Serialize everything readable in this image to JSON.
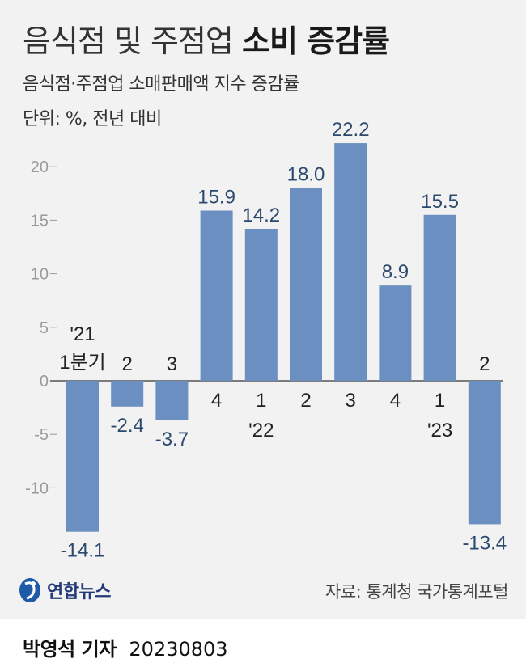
{
  "header": {
    "title_light": "음식점 및 주점업",
    "title_bold": "소비 증감률",
    "subtitle": "음식점·주점업 소매판매액 지수 증감률",
    "unit": "단위: %, 전년 대비"
  },
  "chart_data": {
    "type": "bar",
    "title": "음식점 및 주점업 소비 증감률",
    "subtitle": "음식점·주점업 소매판매액 지수 증감률",
    "ylabel": "단위: %, 전년 대비",
    "ylim": [
      -14.1,
      22.2
    ],
    "yticks": [
      "20",
      "15",
      "10",
      "5",
      "0",
      "-5",
      "-10"
    ],
    "ytick_values": [
      20,
      15,
      10,
      5,
      0,
      -5,
      -10
    ],
    "categories": [
      "'21 1분기",
      "2",
      "3",
      "4",
      "'22 1",
      "2",
      "3",
      "4",
      "'23 1",
      "2"
    ],
    "category_labels": [
      [
        "'21",
        "1분기"
      ],
      [
        "2"
      ],
      [
        "3"
      ],
      [
        "4"
      ],
      [
        "1",
        "'22"
      ],
      [
        "2"
      ],
      [
        "3"
      ],
      [
        "4"
      ],
      [
        "1",
        "'23"
      ],
      [
        "2"
      ]
    ],
    "values": [
      -14.1,
      -2.4,
      -3.7,
      15.9,
      14.2,
      18.0,
      22.2,
      8.9,
      15.5,
      -13.4
    ],
    "value_labels": [
      "-14.1",
      "-2.4",
      "-3.7",
      "15.9",
      "14.2",
      "18.0",
      "22.2",
      "8.9",
      "15.5",
      "-13.4"
    ],
    "bar_color": "#6a8fc0",
    "grid": false
  },
  "footer": {
    "logo_text": "연합뉴스",
    "source": "자료: 통계청 국가통계포털",
    "reporter": "박영석 기자",
    "date": "20230803"
  }
}
